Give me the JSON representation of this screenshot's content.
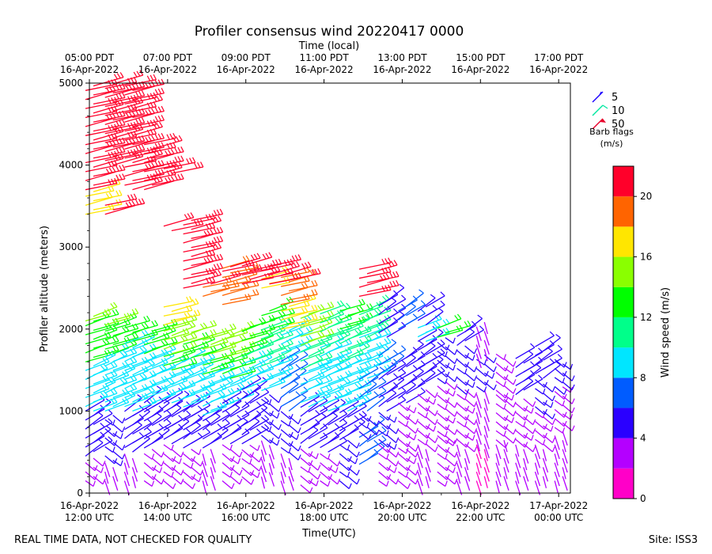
{
  "chart_data": {
    "type": "wind-barb-profile",
    "title": "Profiler consensus wind 20220417 0000",
    "top_axis_label": "Time (local)",
    "xlabel": "Time(UTC)",
    "ylabel": "Profiler altitude (meters)",
    "ylim": [
      0,
      5000
    ],
    "y_ticks": [
      0,
      1000,
      2000,
      3000,
      4000,
      5000
    ],
    "xlim_hours_utc": [
      12.0,
      24.3
    ],
    "x_ticks_utc": [
      {
        "hour": 12,
        "line1": "16-Apr-2022",
        "line2": "12:00 UTC"
      },
      {
        "hour": 14,
        "line1": "16-Apr-2022",
        "line2": "14:00 UTC"
      },
      {
        "hour": 16,
        "line1": "16-Apr-2022",
        "line2": "16:00 UTC"
      },
      {
        "hour": 18,
        "line1": "16-Apr-2022",
        "line2": "18:00 UTC"
      },
      {
        "hour": 20,
        "line1": "16-Apr-2022",
        "line2": "20:00 UTC"
      },
      {
        "hour": 22,
        "line1": "16-Apr-2022",
        "line2": "22:00 UTC"
      },
      {
        "hour": 24,
        "line1": "17-Apr-2022",
        "line2": "00:00 UTC"
      }
    ],
    "x_ticks_local": [
      {
        "hour": 12,
        "line1": "05:00 PDT",
        "line2": "16-Apr-2022"
      },
      {
        "hour": 14,
        "line1": "07:00 PDT",
        "line2": "16-Apr-2022"
      },
      {
        "hour": 16,
        "line1": "09:00 PDT",
        "line2": "16-Apr-2022"
      },
      {
        "hour": 18,
        "line1": "11:00 PDT",
        "line2": "16-Apr-2022"
      },
      {
        "hour": 20,
        "line1": "13:00 PDT",
        "line2": "16-Apr-2022"
      },
      {
        "hour": 22,
        "line1": "15:00 PDT",
        "line2": "16-Apr-2022"
      },
      {
        "hour": 24,
        "line1": "17:00 PDT",
        "line2": "16-Apr-2022"
      }
    ],
    "barb_legend": {
      "entries": [
        {
          "value": "5",
          "color": "#1a00ff"
        },
        {
          "value": "10",
          "color": "#00e8a0"
        },
        {
          "value": "50",
          "color": "#e8002a"
        }
      ],
      "caption_line1": "Barb flags",
      "caption_line2": "(m/s)"
    },
    "colorbar": {
      "label": "Wind speed (m/s)",
      "range": [
        0,
        22
      ],
      "ticks": [
        0,
        4,
        8,
        12,
        16,
        20
      ],
      "bins": [
        {
          "from": 0,
          "to": 2,
          "color": "#ff00c8"
        },
        {
          "from": 2,
          "to": 4,
          "color": "#b400ff"
        },
        {
          "from": 4,
          "to": 6,
          "color": "#2a00ff"
        },
        {
          "from": 6,
          "to": 8,
          "color": "#005cff"
        },
        {
          "from": 8,
          "to": 10,
          "color": "#00e6ff"
        },
        {
          "from": 10,
          "to": 12,
          "color": "#00ff8a"
        },
        {
          "from": 12,
          "to": 14,
          "color": "#00ff00"
        },
        {
          "from": 14,
          "to": 16,
          "color": "#8aff00"
        },
        {
          "from": 16,
          "to": 18,
          "color": "#ffe600"
        },
        {
          "from": 18,
          "to": 20,
          "color": "#ff6400"
        },
        {
          "from": 20,
          "to": 22,
          "color": "#ff002a"
        }
      ]
    },
    "columns": [
      {
        "time": 12.0,
        "layers": [
          [
            150,
            450,
            3
          ],
          [
            450,
            1000,
            5
          ],
          [
            1000,
            1600,
            8
          ],
          [
            1600,
            2100,
            12
          ],
          [
            2100,
            2200,
            14
          ],
          [
            3400,
            3700,
            17
          ],
          [
            3700,
            5000,
            21
          ]
        ]
      },
      {
        "time": 12.5,
        "layers": [
          [
            150,
            400,
            2
          ],
          [
            400,
            1000,
            4
          ],
          [
            1000,
            1700,
            8
          ],
          [
            1700,
            2050,
            12
          ],
          [
            2050,
            2150,
            15
          ],
          [
            3400,
            3550,
            21
          ],
          [
            4000,
            5000,
            21
          ]
        ]
      },
      {
        "time": 13.0,
        "layers": [
          [
            150,
            500,
            2
          ],
          [
            500,
            1000,
            5
          ],
          [
            1000,
            1850,
            9
          ],
          [
            1850,
            2050,
            12
          ],
          [
            3700,
            5000,
            21
          ]
        ]
      },
      {
        "time": 13.5,
        "layers": [
          [
            150,
            550,
            3
          ],
          [
            550,
            1100,
            5
          ],
          [
            1100,
            1700,
            9
          ],
          [
            1700,
            2000,
            12
          ],
          [
            3700,
            4300,
            21
          ]
        ]
      },
      {
        "time": 14.0,
        "layers": [
          [
            150,
            600,
            3
          ],
          [
            600,
            1100,
            5
          ],
          [
            1100,
            1500,
            8
          ],
          [
            1500,
            1700,
            12
          ],
          [
            1700,
            2050,
            14
          ],
          [
            2050,
            2300,
            16
          ],
          [
            3200,
            3300,
            21
          ],
          [
            3900,
            4000,
            21
          ]
        ]
      },
      {
        "time": 14.5,
        "layers": [
          [
            150,
            550,
            3
          ],
          [
            550,
            1050,
            5
          ],
          [
            1050,
            1650,
            8
          ],
          [
            1650,
            1850,
            12
          ],
          [
            1850,
            2000,
            15
          ],
          [
            2500,
            3350,
            21
          ]
        ]
      },
      {
        "time": 15.0,
        "layers": [
          [
            150,
            550,
            2
          ],
          [
            550,
            950,
            5
          ],
          [
            950,
            1450,
            8
          ],
          [
            1450,
            1700,
            12
          ],
          [
            1700,
            1950,
            15
          ],
          [
            2400,
            2550,
            19
          ],
          [
            2550,
            2600,
            21
          ]
        ]
      },
      {
        "time": 15.5,
        "layers": [
          [
            150,
            600,
            3
          ],
          [
            600,
            1100,
            5
          ],
          [
            1100,
            1400,
            8
          ],
          [
            1400,
            1650,
            12
          ],
          [
            1650,
            1950,
            15
          ],
          [
            2300,
            2750,
            19
          ],
          [
            2650,
            2800,
            21
          ]
        ]
      },
      {
        "time": 16.0,
        "layers": [
          [
            200,
            600,
            3
          ],
          [
            600,
            1300,
            5
          ],
          [
            1300,
            1600,
            8
          ],
          [
            1600,
            1750,
            11
          ],
          [
            1750,
            2050,
            13
          ],
          [
            2550,
            2800,
            21
          ]
        ]
      },
      {
        "time": 16.5,
        "layers": [
          [
            200,
            650,
            2
          ],
          [
            650,
            1250,
            4
          ],
          [
            1250,
            1550,
            8
          ],
          [
            1550,
            2000,
            10
          ],
          [
            2000,
            2250,
            12
          ],
          [
            2500,
            2650,
            17
          ],
          [
            2550,
            2800,
            21
          ]
        ]
      },
      {
        "time": 17.0,
        "layers": [
          [
            150,
            500,
            2
          ],
          [
            500,
            1000,
            4
          ],
          [
            1000,
            1650,
            6
          ],
          [
            1650,
            2000,
            9
          ],
          [
            2000,
            2300,
            16
          ],
          [
            2300,
            2650,
            18
          ],
          [
            2600,
            2700,
            21
          ]
        ]
      },
      {
        "time": 17.5,
        "layers": [
          [
            100,
            550,
            3
          ],
          [
            550,
            1050,
            5
          ],
          [
            1050,
            1500,
            8
          ],
          [
            1500,
            1800,
            10
          ],
          [
            1800,
            2200,
            14
          ]
        ]
      },
      {
        "time": 18.0,
        "layers": [
          [
            150,
            500,
            3
          ],
          [
            500,
            1000,
            5
          ],
          [
            1000,
            1500,
            8
          ],
          [
            1500,
            1800,
            9
          ],
          [
            1800,
            2200,
            11
          ]
        ]
      },
      {
        "time": 18.5,
        "layers": [
          [
            150,
            650,
            4
          ],
          [
            650,
            1000,
            5
          ],
          [
            1000,
            1600,
            8
          ],
          [
            1600,
            2000,
            10
          ],
          [
            2000,
            2250,
            12
          ]
        ]
      },
      {
        "time": 19.0,
        "layers": [
          [
            350,
            750,
            7
          ],
          [
            750,
            1000,
            4
          ],
          [
            1000,
            1400,
            6
          ],
          [
            1400,
            1900,
            9
          ],
          [
            1900,
            2250,
            10
          ],
          [
            2400,
            2750,
            21
          ]
        ]
      },
      {
        "time": 19.5,
        "layers": [
          [
            150,
            600,
            3
          ],
          [
            600,
            1000,
            4
          ],
          [
            1000,
            1450,
            5
          ],
          [
            1450,
            1700,
            6
          ],
          [
            1900,
            2350,
            5
          ]
        ]
      },
      {
        "time": 20.0,
        "layers": [
          [
            150,
            550,
            3
          ],
          [
            550,
            1100,
            3
          ],
          [
            1100,
            1700,
            5
          ],
          [
            2000,
            2300,
            6
          ]
        ]
      },
      {
        "time": 20.5,
        "layers": [
          [
            150,
            600,
            2
          ],
          [
            600,
            1300,
            3
          ],
          [
            1300,
            1850,
            5
          ],
          [
            1850,
            2050,
            8
          ],
          [
            2050,
            2300,
            5
          ]
        ]
      },
      {
        "time": 21.0,
        "layers": [
          [
            150,
            700,
            3
          ],
          [
            700,
            1400,
            3
          ],
          [
            1400,
            1900,
            4
          ],
          [
            1900,
            2050,
            12
          ]
        ]
      },
      {
        "time": 21.5,
        "layers": [
          [
            150,
            600,
            2
          ],
          [
            600,
            1300,
            3
          ],
          [
            1300,
            1800,
            4
          ],
          [
            1800,
            2000,
            5
          ]
        ]
      },
      {
        "time": 22.0,
        "layers": [
          [
            150,
            600,
            1
          ],
          [
            600,
            1300,
            2
          ],
          [
            1300,
            1700,
            4
          ],
          [
            1700,
            2100,
            2
          ]
        ]
      },
      {
        "time": 22.5,
        "layers": [
          [
            150,
            650,
            2
          ],
          [
            650,
            1200,
            3
          ],
          [
            1200,
            1700,
            3
          ]
        ]
      },
      {
        "time": 23.0,
        "layers": [
          [
            150,
            600,
            2
          ],
          [
            600,
            1200,
            3
          ],
          [
            1200,
            1650,
            5
          ]
        ]
      },
      {
        "time": 23.5,
        "layers": [
          [
            150,
            600,
            2
          ],
          [
            600,
            1000,
            3
          ],
          [
            1000,
            1400,
            4
          ],
          [
            1400,
            1800,
            5
          ]
        ]
      },
      {
        "time": 24.0,
        "layers": [
          [
            150,
            800,
            2
          ],
          [
            800,
            1300,
            3
          ],
          [
            1300,
            1650,
            4
          ]
        ]
      }
    ]
  },
  "footer": {
    "disclaimer": "REAL TIME DATA, NOT CHECKED FOR QUALITY",
    "site": "Site: ISS3"
  }
}
